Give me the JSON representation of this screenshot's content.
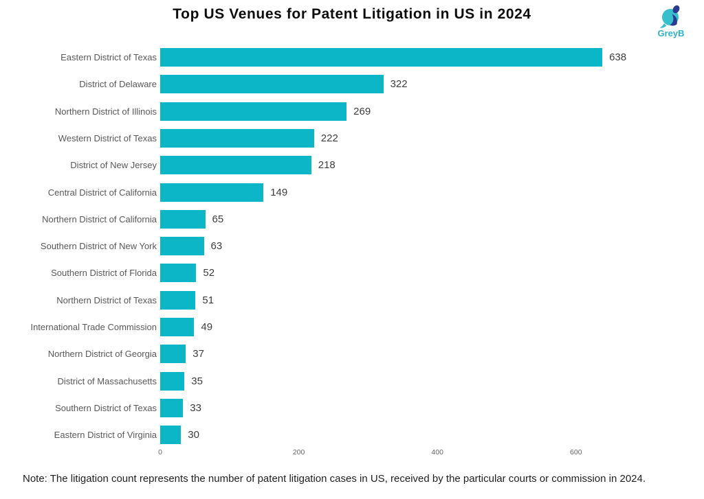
{
  "title": "Top US Venues for Patent Litigation in US in 2024",
  "logo": {
    "text": "GreyB"
  },
  "note": "Note: The litigation count represents the number of patent litigation cases in US, received by the particular courts or commission in 2024.",
  "colors": {
    "bar": "#0db6c7",
    "logo_teal": "#38bfce",
    "logo_navy": "#2b3a8f",
    "category_label": "#595959",
    "value_label": "#3d3d3d",
    "tick_label": "#666666",
    "title": "#0d0d0d",
    "background": "#ffffff"
  },
  "chart_data": {
    "type": "bar",
    "orientation": "horizontal",
    "title": "Top US Venues for Patent Litigation in US in 2024",
    "xlabel": "",
    "ylabel": "",
    "categories": [
      "Eastern District of Texas",
      "District of Delaware",
      "Northern District of Illinois",
      "Western District of Texas",
      "District of New Jersey",
      "Central District of California",
      "Northern District of California",
      "Southern District of New York",
      "Southern District of Florida",
      "Northern District of Texas",
      "International Trade Commission",
      "Northern District of Georgia",
      "District of Massachusetts",
      "Southern District of Texas",
      "Eastern District of Virginia"
    ],
    "values": [
      638,
      322,
      269,
      222,
      218,
      149,
      65,
      63,
      52,
      51,
      49,
      37,
      35,
      33,
      30
    ],
    "xticks": [
      0,
      200,
      400,
      600
    ],
    "xlim": [
      0,
      700
    ],
    "grid": false,
    "legend": false,
    "value_labels": true,
    "bar_color": "#0db6c7"
  }
}
